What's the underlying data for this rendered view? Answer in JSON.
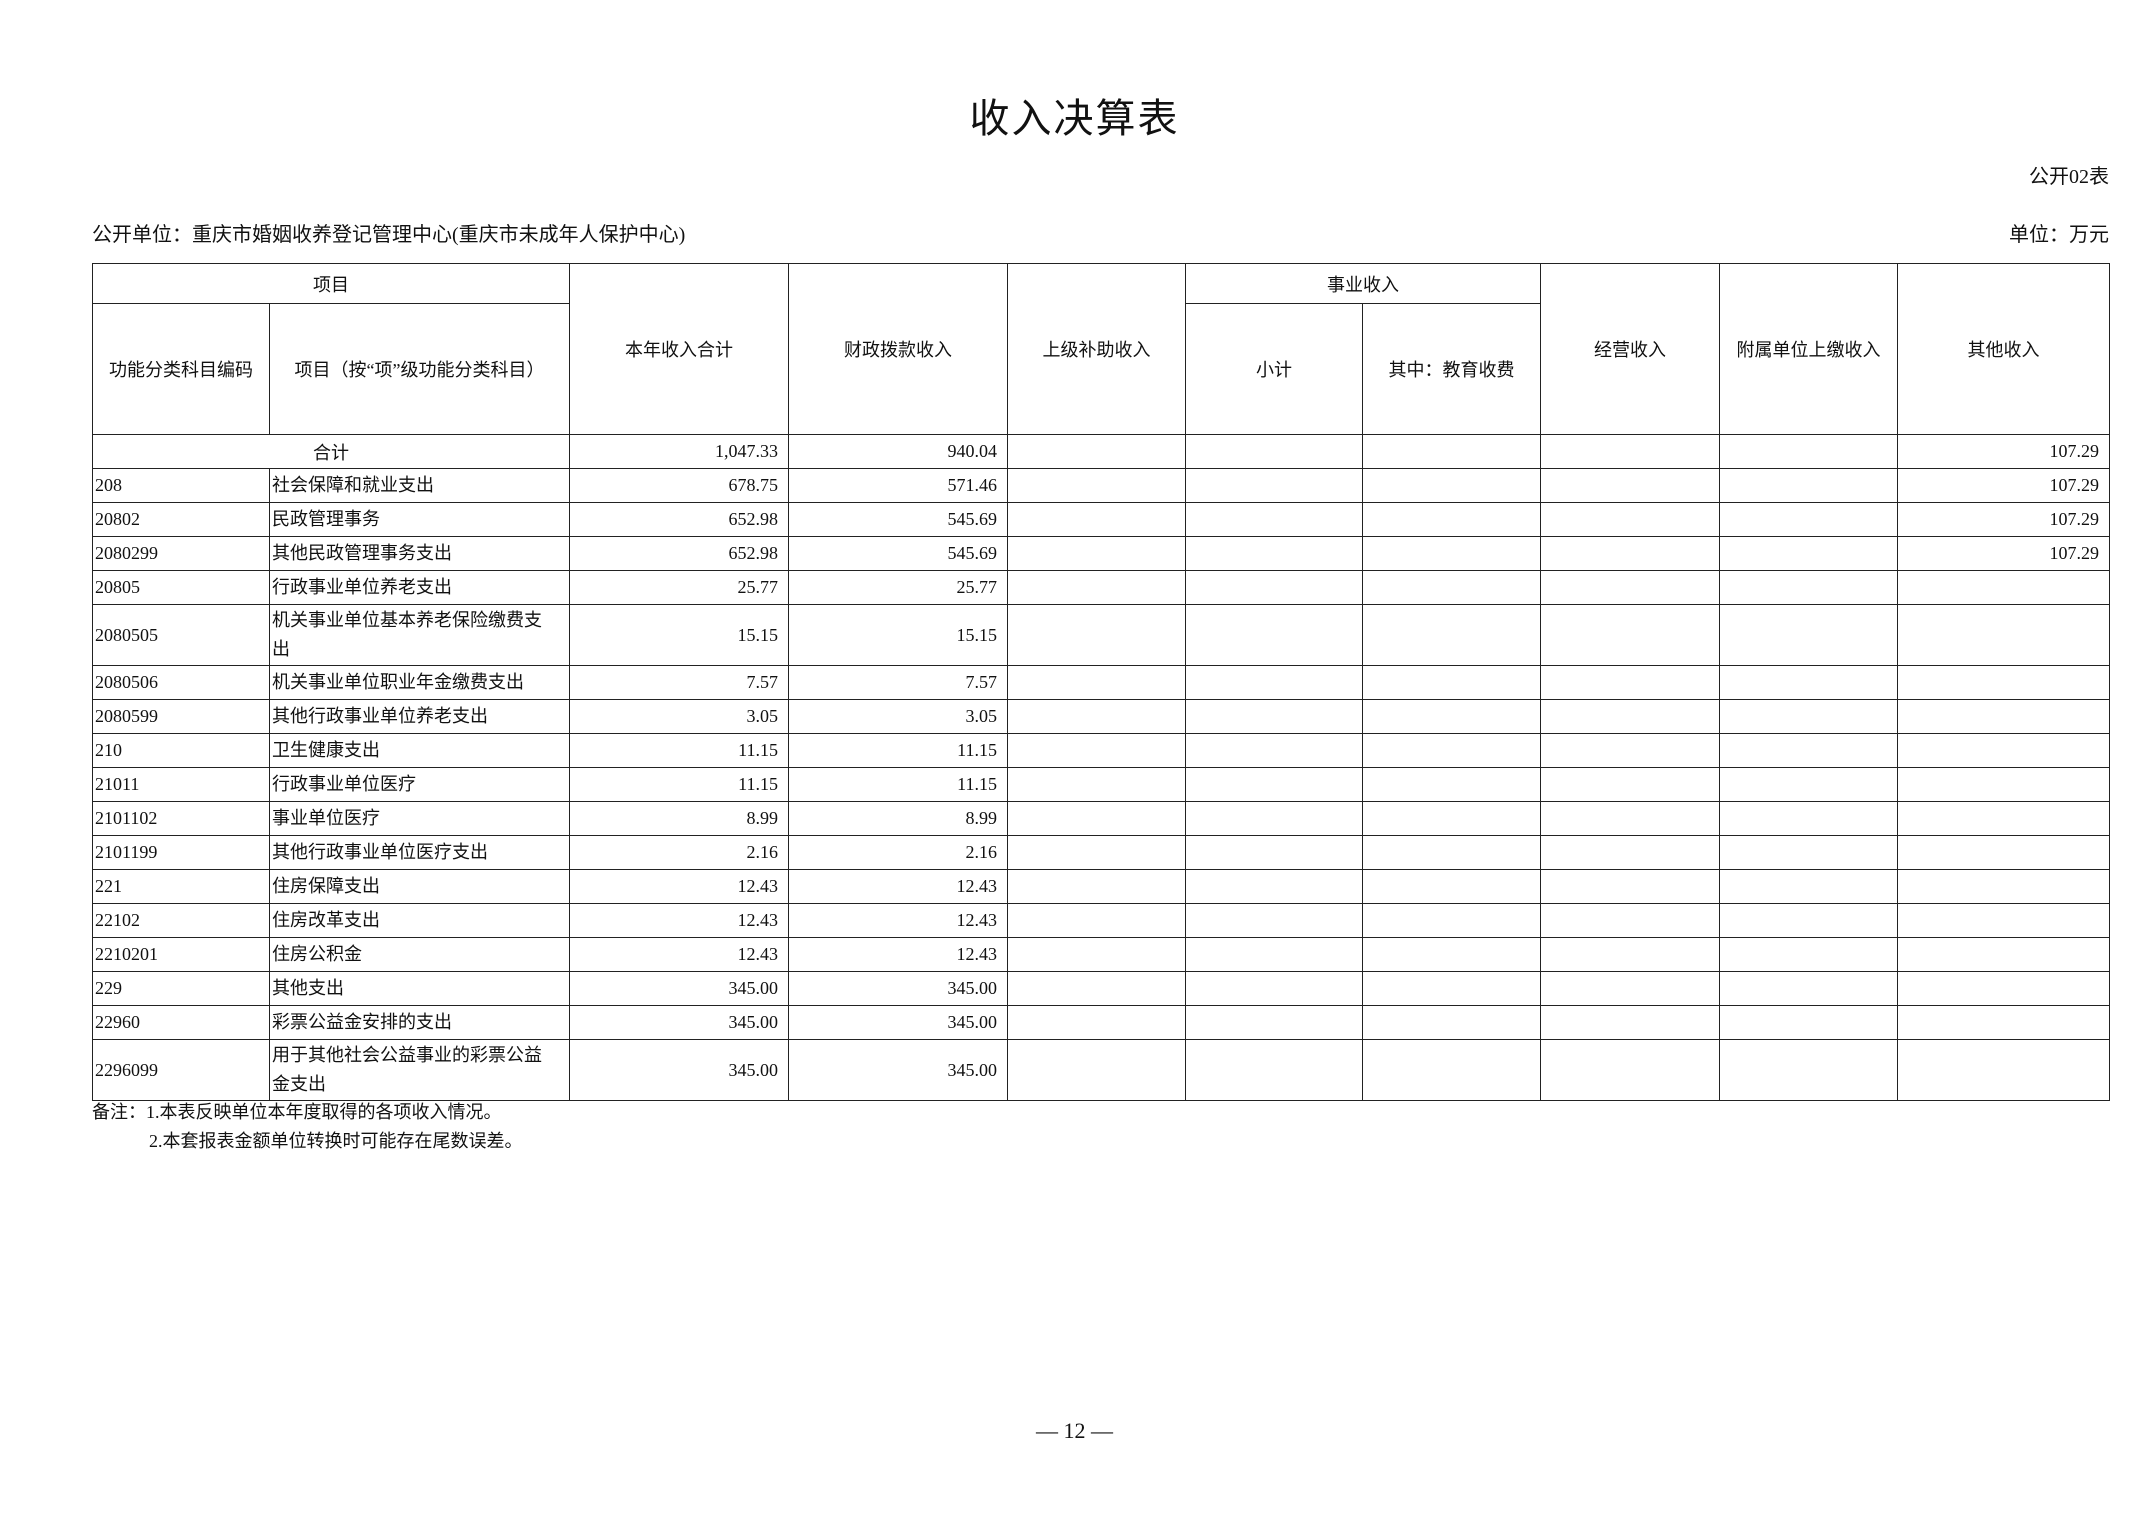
{
  "title": "收入决算表",
  "form_no": "公开02表",
  "unit_line": "公开单位：重庆市婚姻收养登记管理中心(重庆市未成年人保护中心)",
  "unit": "单位：万元",
  "headers": {
    "item_group": "项目",
    "code": "功能分类科目编码",
    "name": "项目（按“项”级功能分类科目）",
    "total": "本年收入合计",
    "fiscal": "财政拨款收入",
    "superior": "上级补助收入",
    "business_group": "事业收入",
    "subtotal": "小计",
    "education": "其中：教育收费",
    "operating": "经营收入",
    "affiliated": "附属单位上缴收入",
    "other": "其他收入"
  },
  "total_row": {
    "label": "合计",
    "total": "1,047.33",
    "fiscal": "940.04",
    "other": "107.29"
  },
  "rows": [
    {
      "code": "208",
      "name": "社会保障和就业支出",
      "total": "678.75",
      "fiscal": "571.46",
      "other": "107.29"
    },
    {
      "code": "20802",
      "name": "民政管理事务",
      "total": "652.98",
      "fiscal": "545.69",
      "other": "107.29"
    },
    {
      "code": "2080299",
      "name": "其他民政管理事务支出",
      "total": "652.98",
      "fiscal": "545.69",
      "other": "107.29"
    },
    {
      "code": "20805",
      "name": "行政事业单位养老支出",
      "total": "25.77",
      "fiscal": "25.77",
      "other": ""
    },
    {
      "code": "2080505",
      "name": "机关事业单位基本养老保险缴费支出",
      "total": "15.15",
      "fiscal": "15.15",
      "other": ""
    },
    {
      "code": "2080506",
      "name": "机关事业单位职业年金缴费支出",
      "total": "7.57",
      "fiscal": "7.57",
      "other": ""
    },
    {
      "code": "2080599",
      "name": "其他行政事业单位养老支出",
      "total": "3.05",
      "fiscal": "3.05",
      "other": ""
    },
    {
      "code": "210",
      "name": "卫生健康支出",
      "total": "11.15",
      "fiscal": "11.15",
      "other": ""
    },
    {
      "code": "21011",
      "name": "行政事业单位医疗",
      "total": "11.15",
      "fiscal": "11.15",
      "other": ""
    },
    {
      "code": "2101102",
      "name": "事业单位医疗",
      "total": "8.99",
      "fiscal": "8.99",
      "other": ""
    },
    {
      "code": "2101199",
      "name": "其他行政事业单位医疗支出",
      "total": "2.16",
      "fiscal": "2.16",
      "other": ""
    },
    {
      "code": "221",
      "name": "住房保障支出",
      "total": "12.43",
      "fiscal": "12.43",
      "other": ""
    },
    {
      "code": "22102",
      "name": "住房改革支出",
      "total": "12.43",
      "fiscal": "12.43",
      "other": ""
    },
    {
      "code": "2210201",
      "name": "住房公积金",
      "total": "12.43",
      "fiscal": "12.43",
      "other": ""
    },
    {
      "code": "229",
      "name": "其他支出",
      "total": "345.00",
      "fiscal": "345.00",
      "other": ""
    },
    {
      "code": "22960",
      "name": "彩票公益金安排的支出",
      "total": "345.00",
      "fiscal": "345.00",
      "other": ""
    },
    {
      "code": "2296099",
      "name": "用于其他社会公益事业的彩票公益金支出",
      "total": "345.00",
      "fiscal": "345.00",
      "other": ""
    }
  ],
  "notes": [
    "备注：1.本表反映单位本年度取得的各项收入情况。",
    "2.本套报表金额单位转换时可能存在尾数误差。"
  ],
  "page_number": "— 12 —"
}
